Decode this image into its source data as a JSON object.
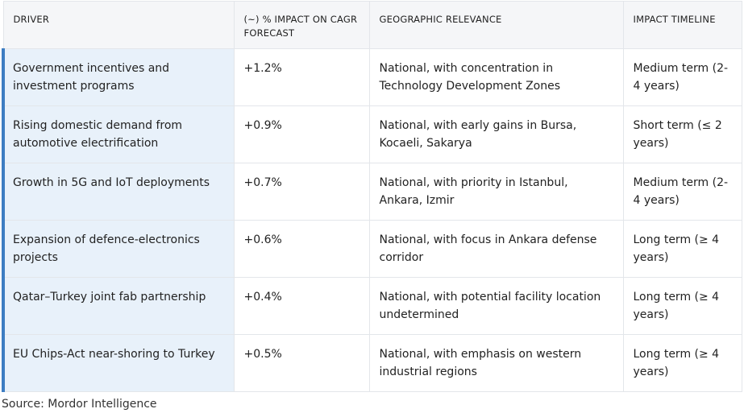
{
  "table": {
    "headers": [
      "DRIVER",
      "(~) % IMPACT ON CAGR FORECAST",
      "GEOGRAPHIC RELEVANCE",
      "IMPACT TIMELINE"
    ],
    "rows": [
      {
        "driver": "Government incentives and investment programs",
        "impact": "+1.2%",
        "geography": "National, with concentration in Technology Development Zones",
        "timeline": "Medium term (2-4 years)"
      },
      {
        "driver": "Rising domestic demand from automotive electrification",
        "impact": "+0.9%",
        "geography": "National, with early gains in Bursa, Kocaeli, Sakarya",
        "timeline": "Short term (≤ 2 years)"
      },
      {
        "driver": "Growth in 5G and IoT deployments",
        "impact": "+0.7%",
        "geography": "National, with priority in Istanbul, Ankara, Izmir",
        "timeline": "Medium term (2-4 years)"
      },
      {
        "driver": "Expansion of defence-electronics projects",
        "impact": "+0.6%",
        "geography": "National, with focus in Ankara defense corridor",
        "timeline": "Long term (≥ 4 years)"
      },
      {
        "driver": "Qatar–Turkey joint fab partnership",
        "impact": "+0.4%",
        "geography": "National, with potential facility location undetermined",
        "timeline": "Long term (≥ 4 years)"
      },
      {
        "driver": "EU Chips-Act near-shoring to Turkey",
        "impact": "+0.5%",
        "geography": "National, with emphasis on western industrial regions",
        "timeline": "Long term (≥ 4 years)"
      }
    ]
  },
  "source": "Source: Mordor Intelligence",
  "colors": {
    "header_bg": "#f5f6f8",
    "driver_bg": "#e8f1fa",
    "accent": "#3d7dc2",
    "border": "#e3e6ea"
  }
}
